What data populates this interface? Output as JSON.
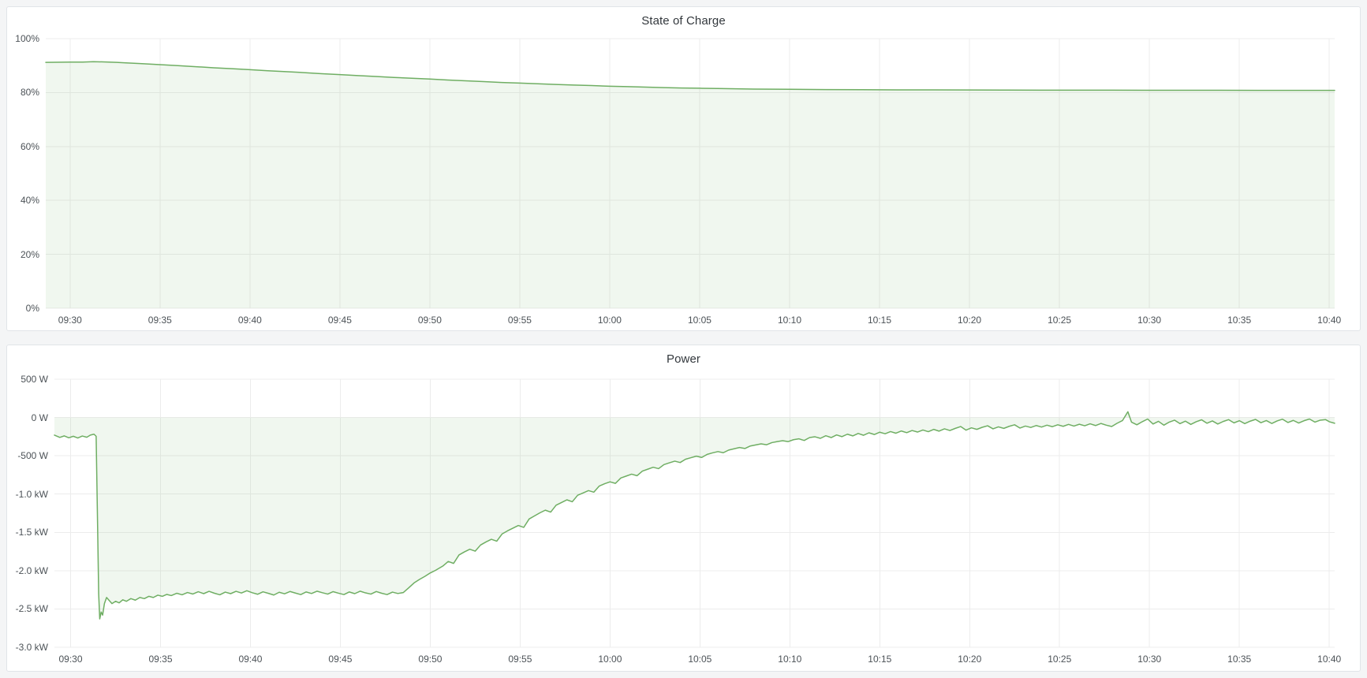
{
  "colors": {
    "page_background": "#f4f5f6",
    "panel_background": "#ffffff",
    "panel_border": "#e1e4e8",
    "grid": "#ececec",
    "axis_text": "#4c5257",
    "title_text": "#33383d",
    "series_line": "#6fae63",
    "series_fill": "rgba(111,174,99,0.10)"
  },
  "chart_data": [
    {
      "type": "area",
      "title": "State of Charge",
      "unit": "percent",
      "legend": "none",
      "grid": true,
      "ylim": [
        0,
        100
      ],
      "xlim_minutes": [
        -1.35,
        70.3
      ],
      "baseline": 0,
      "y_ticks": [
        {
          "v": 100,
          "label": "100%"
        },
        {
          "v": 80,
          "label": "80%"
        },
        {
          "v": 60,
          "label": "60%"
        },
        {
          "v": 40,
          "label": "40%"
        },
        {
          "v": 20,
          "label": "20%"
        },
        {
          "v": 0,
          "label": "0%"
        }
      ],
      "x_ticks": [
        {
          "t": 0,
          "label": "09:30"
        },
        {
          "t": 5,
          "label": "09:35"
        },
        {
          "t": 10,
          "label": "09:40"
        },
        {
          "t": 15,
          "label": "09:45"
        },
        {
          "t": 20,
          "label": "09:50"
        },
        {
          "t": 25,
          "label": "09:55"
        },
        {
          "t": 30,
          "label": "10:00"
        },
        {
          "t": 35,
          "label": "10:05"
        },
        {
          "t": 40,
          "label": "10:10"
        },
        {
          "t": 45,
          "label": "10:15"
        },
        {
          "t": 50,
          "label": "10:20"
        },
        {
          "t": 55,
          "label": "10:25"
        },
        {
          "t": 60,
          "label": "10:30"
        },
        {
          "t": 65,
          "label": "10:35"
        },
        {
          "t": 70,
          "label": "10:40"
        }
      ],
      "points": [
        [
          -1.35,
          91.2
        ],
        [
          0,
          91.3
        ],
        [
          0.7,
          91.32
        ],
        [
          1.3,
          91.45
        ],
        [
          2,
          91.35
        ],
        [
          2.6,
          91.2
        ],
        [
          3,
          91.05
        ],
        [
          4,
          90.7
        ],
        [
          5,
          90.35
        ],
        [
          6,
          90.0
        ],
        [
          7,
          89.6
        ],
        [
          8,
          89.2
        ],
        [
          9,
          88.85
        ],
        [
          10,
          88.5
        ],
        [
          11,
          88.1
        ],
        [
          12,
          87.75
        ],
        [
          13,
          87.4
        ],
        [
          14,
          87.0
        ],
        [
          15,
          86.65
        ],
        [
          16,
          86.3
        ],
        [
          17,
          85.95
        ],
        [
          18,
          85.6
        ],
        [
          19,
          85.3
        ],
        [
          20,
          85.0
        ],
        [
          21,
          84.65
        ],
        [
          22,
          84.35
        ],
        [
          23,
          84.05
        ],
        [
          24,
          83.75
        ],
        [
          25,
          83.5
        ],
        [
          26,
          83.25
        ],
        [
          27,
          83.0
        ],
        [
          28,
          82.8
        ],
        [
          29,
          82.6
        ],
        [
          30,
          82.35
        ],
        [
          31,
          82.2
        ],
        [
          32,
          82.0
        ],
        [
          33,
          81.85
        ],
        [
          34,
          81.7
        ],
        [
          35,
          81.6
        ],
        [
          36,
          81.5
        ],
        [
          37,
          81.4
        ],
        [
          38,
          81.3
        ],
        [
          39,
          81.25
        ],
        [
          40,
          81.2
        ],
        [
          42,
          81.1
        ],
        [
          44,
          81.05
        ],
        [
          46,
          81.0
        ],
        [
          48,
          80.98
        ],
        [
          50,
          80.95
        ],
        [
          52,
          80.93
        ],
        [
          54,
          80.9
        ],
        [
          56,
          80.9
        ],
        [
          58,
          80.88
        ],
        [
          60,
          80.85
        ],
        [
          62,
          80.85
        ],
        [
          64,
          80.83
        ],
        [
          66,
          80.8
        ],
        [
          68,
          80.8
        ],
        [
          70.3,
          80.8
        ]
      ]
    },
    {
      "type": "area",
      "title": "Power",
      "unit": "watt",
      "legend": "none",
      "grid": true,
      "ylim": [
        -3000,
        500
      ],
      "xlim_minutes": [
        -0.9,
        70.3
      ],
      "baseline": 0,
      "y_ticks": [
        {
          "v": 500,
          "label": "500 W"
        },
        {
          "v": 0,
          "label": "0 W"
        },
        {
          "v": -500,
          "label": "-500 W"
        },
        {
          "v": -1000,
          "label": "-1.0 kW"
        },
        {
          "v": -1500,
          "label": "-1.5 kW"
        },
        {
          "v": -2000,
          "label": "-2.0 kW"
        },
        {
          "v": -2500,
          "label": "-2.5 kW"
        },
        {
          "v": -3000,
          "label": "-3.0 kW"
        }
      ],
      "x_ticks": [
        {
          "t": 0,
          "label": "09:30"
        },
        {
          "t": 5,
          "label": "09:35"
        },
        {
          "t": 10,
          "label": "09:40"
        },
        {
          "t": 15,
          "label": "09:45"
        },
        {
          "t": 20,
          "label": "09:50"
        },
        {
          "t": 25,
          "label": "09:55"
        },
        {
          "t": 30,
          "label": "10:00"
        },
        {
          "t": 35,
          "label": "10:05"
        },
        {
          "t": 40,
          "label": "10:10"
        },
        {
          "t": 45,
          "label": "10:15"
        },
        {
          "t": 50,
          "label": "10:20"
        },
        {
          "t": 55,
          "label": "10:25"
        },
        {
          "t": 60,
          "label": "10:30"
        },
        {
          "t": 65,
          "label": "10:35"
        },
        {
          "t": 70,
          "label": "10:40"
        }
      ],
      "points": [
        [
          -0.9,
          -230
        ],
        [
          -0.6,
          -260
        ],
        [
          -0.35,
          -240
        ],
        [
          -0.1,
          -265
        ],
        [
          0.15,
          -245
        ],
        [
          0.4,
          -268
        ],
        [
          0.65,
          -242
        ],
        [
          0.9,
          -258
        ],
        [
          1.1,
          -230
        ],
        [
          1.3,
          -218
        ],
        [
          1.42,
          -245
        ],
        [
          1.5,
          -1400
        ],
        [
          1.56,
          -2300
        ],
        [
          1.62,
          -2630
        ],
        [
          1.7,
          -2540
        ],
        [
          1.78,
          -2580
        ],
        [
          1.88,
          -2430
        ],
        [
          2.0,
          -2350
        ],
        [
          2.15,
          -2390
        ],
        [
          2.3,
          -2430
        ],
        [
          2.5,
          -2400
        ],
        [
          2.7,
          -2420
        ],
        [
          2.9,
          -2380
        ],
        [
          3.1,
          -2400
        ],
        [
          3.35,
          -2365
        ],
        [
          3.6,
          -2385
        ],
        [
          3.85,
          -2350
        ],
        [
          4.1,
          -2365
        ],
        [
          4.35,
          -2335
        ],
        [
          4.6,
          -2350
        ],
        [
          4.85,
          -2320
        ],
        [
          5.1,
          -2335
        ],
        [
          5.35,
          -2310
        ],
        [
          5.6,
          -2325
        ],
        [
          5.9,
          -2295
        ],
        [
          6.2,
          -2315
        ],
        [
          6.5,
          -2285
        ],
        [
          6.8,
          -2305
        ],
        [
          7.1,
          -2275
        ],
        [
          7.4,
          -2300
        ],
        [
          7.7,
          -2270
        ],
        [
          8.0,
          -2295
        ],
        [
          8.3,
          -2315
        ],
        [
          8.6,
          -2280
        ],
        [
          8.9,
          -2300
        ],
        [
          9.2,
          -2270
        ],
        [
          9.5,
          -2292
        ],
        [
          9.8,
          -2262
        ],
        [
          10.1,
          -2288
        ],
        [
          10.4,
          -2308
        ],
        [
          10.7,
          -2276
        ],
        [
          11.0,
          -2296
        ],
        [
          11.3,
          -2318
        ],
        [
          11.6,
          -2282
        ],
        [
          11.9,
          -2302
        ],
        [
          12.2,
          -2272
        ],
        [
          12.5,
          -2292
        ],
        [
          12.8,
          -2312
        ],
        [
          13.1,
          -2278
        ],
        [
          13.4,
          -2298
        ],
        [
          13.7,
          -2268
        ],
        [
          14.0,
          -2288
        ],
        [
          14.3,
          -2306
        ],
        [
          14.6,
          -2274
        ],
        [
          14.9,
          -2294
        ],
        [
          15.2,
          -2312
        ],
        [
          15.5,
          -2278
        ],
        [
          15.8,
          -2300
        ],
        [
          16.1,
          -2268
        ],
        [
          16.4,
          -2290
        ],
        [
          16.7,
          -2306
        ],
        [
          17.0,
          -2272
        ],
        [
          17.3,
          -2295
        ],
        [
          17.6,
          -2312
        ],
        [
          17.9,
          -2280
        ],
        [
          18.2,
          -2298
        ],
        [
          18.5,
          -2286
        ],
        [
          18.8,
          -2225
        ],
        [
          19.1,
          -2160
        ],
        [
          19.4,
          -2115
        ],
        [
          19.7,
          -2075
        ],
        [
          20.0,
          -2030
        ],
        [
          20.3,
          -1995
        ],
        [
          20.7,
          -1940
        ],
        [
          21.0,
          -1880
        ],
        [
          21.3,
          -1905
        ],
        [
          21.6,
          -1795
        ],
        [
          21.9,
          -1755
        ],
        [
          22.2,
          -1720
        ],
        [
          22.5,
          -1745
        ],
        [
          22.8,
          -1665
        ],
        [
          23.1,
          -1625
        ],
        [
          23.4,
          -1590
        ],
        [
          23.7,
          -1615
        ],
        [
          24.0,
          -1520
        ],
        [
          24.3,
          -1480
        ],
        [
          24.6,
          -1445
        ],
        [
          24.9,
          -1410
        ],
        [
          25.2,
          -1435
        ],
        [
          25.5,
          -1325
        ],
        [
          25.8,
          -1285
        ],
        [
          26.1,
          -1245
        ],
        [
          26.4,
          -1210
        ],
        [
          26.7,
          -1235
        ],
        [
          27.0,
          -1145
        ],
        [
          27.3,
          -1110
        ],
        [
          27.6,
          -1075
        ],
        [
          27.9,
          -1100
        ],
        [
          28.2,
          -1015
        ],
        [
          28.5,
          -985
        ],
        [
          28.8,
          -955
        ],
        [
          29.1,
          -975
        ],
        [
          29.4,
          -895
        ],
        [
          29.7,
          -865
        ],
        [
          30.0,
          -840
        ],
        [
          30.3,
          -860
        ],
        [
          30.6,
          -790
        ],
        [
          30.9,
          -765
        ],
        [
          31.2,
          -740
        ],
        [
          31.5,
          -760
        ],
        [
          31.8,
          -700
        ],
        [
          32.1,
          -675
        ],
        [
          32.4,
          -650
        ],
        [
          32.7,
          -668
        ],
        [
          33.0,
          -615
        ],
        [
          33.3,
          -592
        ],
        [
          33.6,
          -570
        ],
        [
          33.9,
          -588
        ],
        [
          34.2,
          -545
        ],
        [
          34.5,
          -525
        ],
        [
          34.8,
          -505
        ],
        [
          35.1,
          -522
        ],
        [
          35.4,
          -482
        ],
        [
          35.7,
          -462
        ],
        [
          36.0,
          -445
        ],
        [
          36.3,
          -460
        ],
        [
          36.6,
          -425
        ],
        [
          36.9,
          -408
        ],
        [
          37.2,
          -392
        ],
        [
          37.5,
          -405
        ],
        [
          37.8,
          -372
        ],
        [
          38.1,
          -358
        ],
        [
          38.4,
          -344
        ],
        [
          38.7,
          -356
        ],
        [
          39.0,
          -328
        ],
        [
          39.3,
          -315
        ],
        [
          39.6,
          -303
        ],
        [
          39.9,
          -315
        ],
        [
          40.2,
          -290
        ],
        [
          40.5,
          -278
        ],
        [
          40.8,
          -300
        ],
        [
          41.1,
          -262
        ],
        [
          41.4,
          -252
        ],
        [
          41.7,
          -272
        ],
        [
          42.0,
          -238
        ],
        [
          42.3,
          -262
        ],
        [
          42.6,
          -228
        ],
        [
          42.9,
          -250
        ],
        [
          43.2,
          -218
        ],
        [
          43.5,
          -240
        ],
        [
          43.8,
          -208
        ],
        [
          44.1,
          -232
        ],
        [
          44.4,
          -200
        ],
        [
          44.7,
          -222
        ],
        [
          45.0,
          -192
        ],
        [
          45.3,
          -212
        ],
        [
          45.6,
          -184
        ],
        [
          45.9,
          -205
        ],
        [
          46.2,
          -176
        ],
        [
          46.5,
          -198
        ],
        [
          46.8,
          -170
        ],
        [
          47.1,
          -190
        ],
        [
          47.4,
          -163
        ],
        [
          47.7,
          -185
        ],
        [
          48.0,
          -155
        ],
        [
          48.3,
          -178
        ],
        [
          48.6,
          -148
        ],
        [
          48.9,
          -170
        ],
        [
          49.2,
          -142
        ],
        [
          49.5,
          -118
        ],
        [
          49.8,
          -165
        ],
        [
          50.1,
          -135
        ],
        [
          50.4,
          -155
        ],
        [
          50.7,
          -128
        ],
        [
          51.0,
          -108
        ],
        [
          51.3,
          -148
        ],
        [
          51.6,
          -122
        ],
        [
          51.9,
          -142
        ],
        [
          52.2,
          -115
        ],
        [
          52.5,
          -95
        ],
        [
          52.8,
          -138
        ],
        [
          53.1,
          -112
        ],
        [
          53.4,
          -130
        ],
        [
          53.7,
          -105
        ],
        [
          54.0,
          -125
        ],
        [
          54.3,
          -100
        ],
        [
          54.6,
          -120
        ],
        [
          54.9,
          -95
        ],
        [
          55.2,
          -115
        ],
        [
          55.5,
          -90
        ],
        [
          55.8,
          -112
        ],
        [
          56.1,
          -88
        ],
        [
          56.4,
          -108
        ],
        [
          56.7,
          -82
        ],
        [
          57.0,
          -105
        ],
        [
          57.3,
          -78
        ],
        [
          57.6,
          -100
        ],
        [
          57.9,
          -118
        ],
        [
          58.2,
          -75
        ],
        [
          58.5,
          -40
        ],
        [
          58.8,
          75
        ],
        [
          59.0,
          -60
        ],
        [
          59.3,
          -95
        ],
        [
          59.6,
          -55
        ],
        [
          59.9,
          -20
        ],
        [
          60.2,
          -85
        ],
        [
          60.5,
          -50
        ],
        [
          60.8,
          -100
        ],
        [
          61.1,
          -60
        ],
        [
          61.4,
          -35
        ],
        [
          61.7,
          -80
        ],
        [
          62.0,
          -48
        ],
        [
          62.3,
          -90
        ],
        [
          62.6,
          -55
        ],
        [
          62.9,
          -30
        ],
        [
          63.2,
          -75
        ],
        [
          63.5,
          -45
        ],
        [
          63.8,
          -85
        ],
        [
          64.1,
          -52
        ],
        [
          64.4,
          -28
        ],
        [
          64.7,
          -70
        ],
        [
          65.0,
          -42
        ],
        [
          65.3,
          -80
        ],
        [
          65.6,
          -48
        ],
        [
          65.9,
          -25
        ],
        [
          66.2,
          -68
        ],
        [
          66.5,
          -40
        ],
        [
          66.8,
          -78
        ],
        [
          67.1,
          -45
        ],
        [
          67.4,
          -22
        ],
        [
          67.7,
          -65
        ],
        [
          68.0,
          -38
        ],
        [
          68.3,
          -72
        ],
        [
          68.6,
          -42
        ],
        [
          68.9,
          -20
        ],
        [
          69.2,
          -60
        ],
        [
          69.5,
          -35
        ],
        [
          69.8,
          -28
        ],
        [
          70.0,
          -55
        ],
        [
          70.3,
          -75
        ]
      ]
    }
  ]
}
